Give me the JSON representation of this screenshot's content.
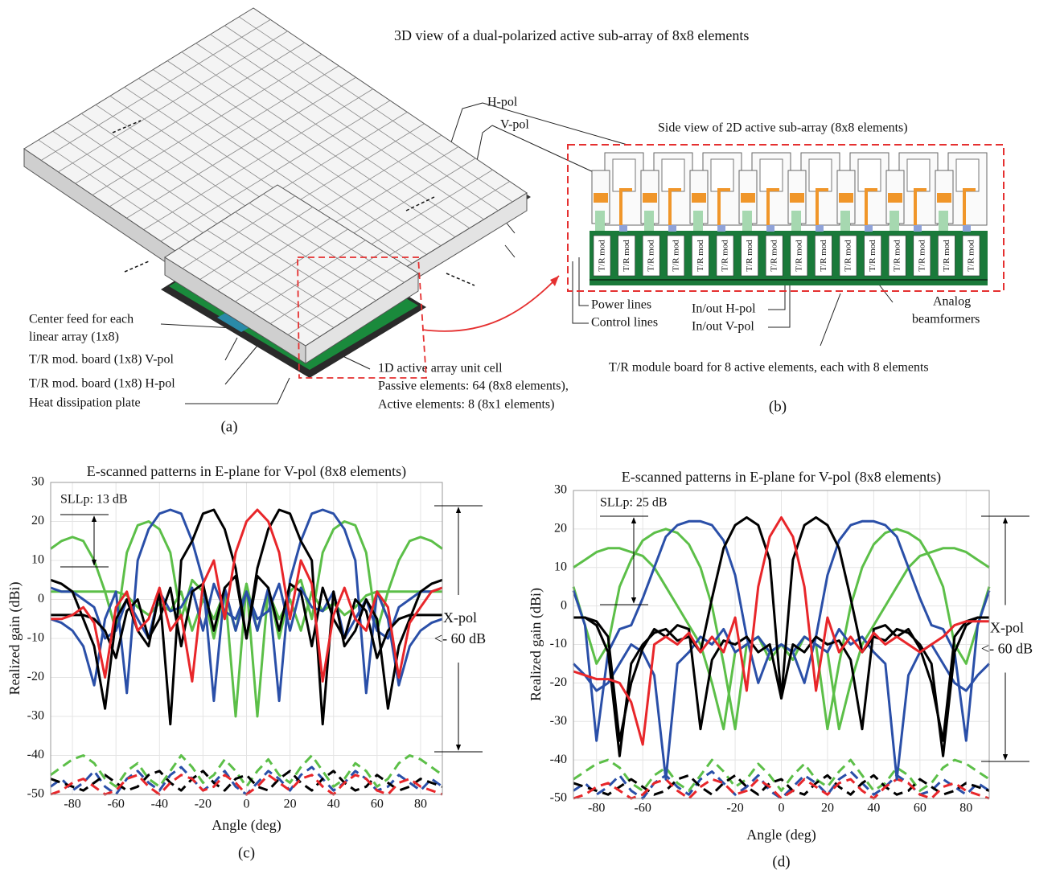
{
  "panel_a": {
    "title": "3D view of a dual-polarized active sub-array of 8x8 elements",
    "h_pol": "H-pol",
    "v_pol": "V-pol",
    "center_feed_1": "Center feed for each",
    "center_feed_2": "linear array (1x8)",
    "board_v": "T/R mod. board (1x8) V-pol",
    "board_h": "T/R mod. board (1x8) H-pol",
    "heat_plate": "Heat dissipation plate",
    "unit_cell": "1D active array unit cell",
    "passive": "Passive elements: 64 (8x8 elements),",
    "active": "Active elements: 8 (8x1 elements)",
    "caption": "(a)"
  },
  "panel_b": {
    "title": "Side view of 2D active sub-array (8x8 elements)",
    "module_label": "T/R mod",
    "power_lines": "Power  lines",
    "control_lines": "Control lines",
    "inout_h": "In/out H-pol",
    "inout_v": "In/out V-pol",
    "analog_1": "Analog",
    "analog_2": "beamformers",
    "board_note": "T/R module board for 8 active elements, each with 8 elements",
    "caption": "(b)"
  },
  "chart_data": [
    {
      "type": "line",
      "title": "E-scanned patterns in E-plane for V-pol (8x8 elements)",
      "x_label": "Angle (deg)",
      "y_label": "Realized gain (dBi)",
      "annotations": {
        "sll": "SLLp: 13 dB",
        "xpol": "X-pol",
        "xpol_level": "<- 60 dB"
      },
      "caption": "(c)",
      "xlim": [
        -90,
        90
      ],
      "xticks": [
        -80,
        -60,
        -40,
        -20,
        0,
        20,
        40,
        60,
        80
      ],
      "ylim": [
        -50,
        30
      ],
      "yticks": [
        -50,
        -40,
        -30,
        -20,
        -10,
        0,
        10,
        20,
        30
      ],
      "grid": true,
      "x": [
        -90,
        -85,
        -80,
        -75,
        -70,
        -65,
        -60,
        -55,
        -50,
        -45,
        -40,
        -35,
        -30,
        -25,
        -20,
        -15,
        -10,
        -5,
        0,
        5,
        10,
        15,
        20,
        25,
        30,
        35,
        40,
        45,
        50,
        55,
        60,
        65,
        70,
        75,
        80,
        85,
        90
      ],
      "series": [
        {
          "color": "#5cbf48",
          "linestyle": "dashed",
          "values": [
            -45,
            -43,
            -41,
            -40,
            -42,
            -46,
            -48,
            -44,
            -42,
            -46,
            -48,
            -44,
            -40,
            -43,
            -47,
            -45,
            -41,
            -44,
            -48,
            -44,
            -41,
            -45,
            -47,
            -43,
            -40,
            -44,
            -48,
            -46,
            -42,
            -44,
            -48,
            -46,
            -42,
            -40,
            -41,
            -43,
            -45
          ]
        },
        {
          "color": "#2a4fa8",
          "linestyle": "dashed",
          "values": [
            -48,
            -46,
            -49,
            -47,
            -44,
            -48,
            -50,
            -46,
            -44,
            -47,
            -49,
            -45,
            -43,
            -46,
            -49,
            -47,
            -44,
            -48,
            -50,
            -47,
            -44,
            -46,
            -49,
            -45,
            -43,
            -46,
            -49,
            -47,
            -44,
            -46,
            -49,
            -48,
            -45,
            -47,
            -49,
            -46,
            -48
          ]
        },
        {
          "color": "#000000",
          "linestyle": "dashed",
          "values": [
            -46,
            -47,
            -48,
            -49,
            -47,
            -45,
            -47,
            -49,
            -48,
            -45,
            -44,
            -47,
            -49,
            -46,
            -44,
            -47,
            -49,
            -46,
            -45,
            -48,
            -49,
            -46,
            -44,
            -47,
            -49,
            -46,
            -44,
            -47,
            -49,
            -48,
            -45,
            -47,
            -49,
            -48,
            -46,
            -47,
            -48
          ]
        },
        {
          "color": "#e8262a",
          "linestyle": "dashed",
          "values": [
            -50,
            -49,
            -47,
            -46,
            -48,
            -50,
            -49,
            -46,
            -45,
            -48,
            -50,
            -47,
            -45,
            -46,
            -49,
            -48,
            -45,
            -47,
            -50,
            -48,
            -45,
            -47,
            -49,
            -46,
            -45,
            -48,
            -50,
            -47,
            -45,
            -46,
            -49,
            -50,
            -47,
            -46,
            -48,
            -49,
            -50
          ]
        },
        {
          "color": "#5cbf48",
          "linestyle": "solid",
          "values": [
            13,
            15,
            16,
            15,
            10,
            2,
            -8,
            12,
            19,
            20,
            18,
            12,
            -5,
            5,
            2,
            -10,
            3,
            -30,
            4,
            -8,
            2,
            -5,
            0,
            -8,
            2,
            -3,
            -1,
            -4,
            -2,
            1,
            2,
            2,
            2,
            2,
            2,
            2,
            2
          ]
        },
        {
          "color": "#5cbf48",
          "linestyle": "solid",
          "values": [
            2,
            2,
            2,
            2,
            2,
            2,
            2,
            1,
            -2,
            -4,
            -1,
            -3,
            2,
            -8,
            0,
            -5,
            2,
            -8,
            4,
            -30,
            3,
            -10,
            2,
            5,
            -5,
            12,
            18,
            20,
            19,
            12,
            -8,
            2,
            10,
            15,
            16,
            15,
            13
          ]
        },
        {
          "color": "#2a4fa8",
          "linestyle": "solid",
          "values": [
            -5,
            -6,
            -8,
            -12,
            -22,
            -5,
            2,
            -24,
            10,
            18,
            22,
            23,
            22,
            15,
            5,
            -26,
            3,
            -8,
            2,
            -5,
            -3,
            4,
            -8,
            3,
            -2,
            -3,
            2,
            -10,
            -5,
            0,
            -8,
            -10,
            -2,
            0,
            2,
            2,
            3
          ]
        },
        {
          "color": "#2a4fa8",
          "linestyle": "solid",
          "values": [
            3,
            2,
            2,
            0,
            -2,
            -10,
            -8,
            0,
            -5,
            -10,
            2,
            -3,
            -2,
            3,
            -8,
            4,
            -3,
            -5,
            2,
            -8,
            3,
            -26,
            5,
            15,
            22,
            23,
            22,
            18,
            10,
            -24,
            2,
            -5,
            -22,
            -12,
            -8,
            -6,
            -5
          ]
        },
        {
          "color": "#000000",
          "linestyle": "solid",
          "values": [
            5,
            4,
            2,
            -5,
            -12,
            -28,
            -5,
            0,
            -8,
            -12,
            2,
            -32,
            10,
            15,
            22,
            23,
            18,
            8,
            -10,
            6,
            3,
            -8,
            4,
            2,
            -12,
            3,
            -5,
            -10,
            0,
            -3,
            -15,
            -8,
            -5,
            -4,
            -4,
            -4,
            -4
          ]
        },
        {
          "color": "#000000",
          "linestyle": "solid",
          "values": [
            -4,
            -4,
            -4,
            -4,
            -5,
            -8,
            -15,
            -3,
            0,
            -10,
            -5,
            3,
            -12,
            2,
            4,
            -8,
            3,
            6,
            -10,
            8,
            18,
            23,
            22,
            15,
            10,
            -32,
            2,
            -12,
            -8,
            0,
            -5,
            -28,
            -12,
            -5,
            2,
            4,
            5
          ]
        },
        {
          "color": "#e8262a",
          "linestyle": "solid",
          "values": [
            -5,
            -5,
            -4,
            -2,
            -6,
            -20,
            -2,
            2,
            -8,
            -5,
            3,
            -8,
            -4,
            -21,
            4,
            10,
            -5,
            12,
            20,
            23,
            20,
            12,
            -5,
            10,
            4,
            -21,
            -4,
            3,
            -5,
            -8,
            2,
            -2,
            -20,
            -6,
            -2,
            2,
            3
          ]
        }
      ]
    },
    {
      "type": "line",
      "title": "E-scanned patterns in E-plane for V-pol (8x8 elements)",
      "x_label": "Angle (deg)",
      "y_label": "Realized gain (dBi)",
      "annotations": {
        "sll": "SLLp: 25 dB",
        "xpol": "X-pol",
        "xpol_level": "<- 60 dB"
      },
      "caption": "(d)",
      "xlim": [
        -90,
        90
      ],
      "xticks": [
        -80,
        -60,
        -20,
        0,
        20,
        40,
        60,
        80
      ],
      "ylim": [
        -50,
        30
      ],
      "yticks": [
        -50,
        -40,
        -30,
        -20,
        -10,
        0,
        10,
        20,
        30
      ],
      "grid": true,
      "x": [
        -90,
        -85,
        -80,
        -75,
        -70,
        -65,
        -60,
        -55,
        -50,
        -45,
        -40,
        -35,
        -30,
        -25,
        -20,
        -15,
        -10,
        -5,
        0,
        5,
        10,
        15,
        20,
        25,
        30,
        35,
        40,
        45,
        50,
        55,
        60,
        65,
        70,
        75,
        80,
        85,
        90
      ],
      "series": [
        {
          "color": "#5cbf48",
          "linestyle": "dashed",
          "values": [
            -45,
            -43,
            -41,
            -40,
            -42,
            -46,
            -48,
            -44,
            -42,
            -46,
            -48,
            -44,
            -40,
            -43,
            -47,
            -45,
            -41,
            -44,
            -48,
            -44,
            -41,
            -45,
            -47,
            -43,
            -40,
            -44,
            -48,
            -46,
            -42,
            -44,
            -48,
            -46,
            -42,
            -40,
            -41,
            -43,
            -45
          ]
        },
        {
          "color": "#2a4fa8",
          "linestyle": "dashed",
          "values": [
            -48,
            -46,
            -49,
            -47,
            -44,
            -48,
            -50,
            -46,
            -44,
            -47,
            -49,
            -45,
            -43,
            -46,
            -49,
            -47,
            -44,
            -48,
            -50,
            -47,
            -44,
            -46,
            -49,
            -45,
            -43,
            -46,
            -49,
            -47,
            -44,
            -46,
            -49,
            -48,
            -45,
            -47,
            -49,
            -46,
            -48
          ]
        },
        {
          "color": "#000000",
          "linestyle": "dashed",
          "values": [
            -46,
            -47,
            -48,
            -49,
            -47,
            -45,
            -47,
            -49,
            -48,
            -45,
            -44,
            -47,
            -49,
            -46,
            -44,
            -47,
            -49,
            -46,
            -45,
            -48,
            -49,
            -46,
            -44,
            -47,
            -49,
            -46,
            -44,
            -47,
            -49,
            -48,
            -45,
            -47,
            -49,
            -48,
            -46,
            -47,
            -48
          ]
        },
        {
          "color": "#e8262a",
          "linestyle": "dashed",
          "values": [
            -50,
            -49,
            -47,
            -46,
            -48,
            -50,
            -49,
            -46,
            -45,
            -48,
            -50,
            -47,
            -45,
            -46,
            -49,
            -48,
            -45,
            -47,
            -50,
            -48,
            -45,
            -47,
            -49,
            -46,
            -45,
            -48,
            -50,
            -47,
            -45,
            -46,
            -49,
            -50,
            -47,
            -46,
            -48,
            -49,
            -50
          ]
        },
        {
          "color": "#5cbf48",
          "linestyle": "solid",
          "values": [
            5,
            -5,
            -15,
            -10,
            5,
            12,
            17,
            19,
            20,
            19,
            16,
            10,
            0,
            -15,
            -32,
            -10,
            -8,
            -12,
            -10,
            -14,
            -8,
            -10,
            -12,
            -32,
            -20,
            -10,
            -5,
            0,
            5,
            10,
            13,
            14,
            15,
            15,
            14,
            12,
            10
          ]
        },
        {
          "color": "#5cbf48",
          "linestyle": "solid",
          "values": [
            10,
            12,
            14,
            15,
            15,
            14,
            13,
            10,
            5,
            0,
            -5,
            -10,
            -20,
            -32,
            -12,
            -10,
            -8,
            -14,
            -10,
            -12,
            -8,
            -10,
            -32,
            -15,
            0,
            10,
            16,
            19,
            20,
            19,
            17,
            12,
            5,
            -10,
            -15,
            -5,
            5
          ]
        },
        {
          "color": "#2a4fa8",
          "linestyle": "solid",
          "values": [
            4,
            -5,
            -35,
            -12,
            -6,
            -5,
            2,
            10,
            18,
            21,
            22,
            22,
            21,
            17,
            8,
            -8,
            -20,
            -12,
            -10,
            -12,
            -8,
            -10,
            -12,
            -6,
            -10,
            -8,
            -12,
            -15,
            -45,
            -18,
            -12,
            -10,
            -15,
            -20,
            -22,
            -18,
            -15
          ]
        },
        {
          "color": "#2a4fa8",
          "linestyle": "solid",
          "values": [
            -15,
            -18,
            -22,
            -20,
            -15,
            -10,
            -12,
            -18,
            -45,
            -15,
            -12,
            -8,
            -10,
            -6,
            -12,
            -10,
            -8,
            -12,
            -10,
            -12,
            -20,
            -8,
            8,
            17,
            21,
            22,
            22,
            21,
            18,
            10,
            2,
            -5,
            -6,
            -12,
            -35,
            -5,
            4
          ]
        },
        {
          "color": "#000000",
          "linestyle": "solid",
          "values": [
            -3,
            -3,
            -5,
            -12,
            -39,
            -15,
            -10,
            -7,
            -6,
            -9,
            -8,
            -12,
            2,
            15,
            21,
            23,
            21,
            12,
            -24,
            -10,
            -12,
            -8,
            -10,
            -9,
            -14,
            -32,
            -6,
            -5,
            -8,
            -6,
            -11,
            -20,
            -35,
            -8,
            -4,
            -3,
            -3
          ]
        },
        {
          "color": "#000000",
          "linestyle": "solid",
          "values": [
            -3,
            -3,
            -4,
            -8,
            -35,
            -20,
            -11,
            -6,
            -8,
            -5,
            -6,
            -32,
            -14,
            -9,
            -10,
            -8,
            -12,
            -10,
            -24,
            12,
            21,
            23,
            21,
            15,
            2,
            -12,
            -8,
            -9,
            -6,
            -7,
            -10,
            -15,
            -39,
            -12,
            -5,
            -3,
            -3
          ]
        },
        {
          "color": "#e8262a",
          "linestyle": "solid",
          "values": [
            -17,
            -18,
            -19,
            -19,
            -20,
            -25,
            -36,
            -10,
            -8,
            -10,
            -7,
            -12,
            -8,
            -12,
            -3,
            -22,
            5,
            18,
            23,
            18,
            5,
            -22,
            -3,
            -12,
            -8,
            -12,
            -7,
            -10,
            -8,
            -10,
            -12,
            -10,
            -8,
            -5,
            -4,
            -4,
            -4
          ]
        }
      ]
    }
  ]
}
